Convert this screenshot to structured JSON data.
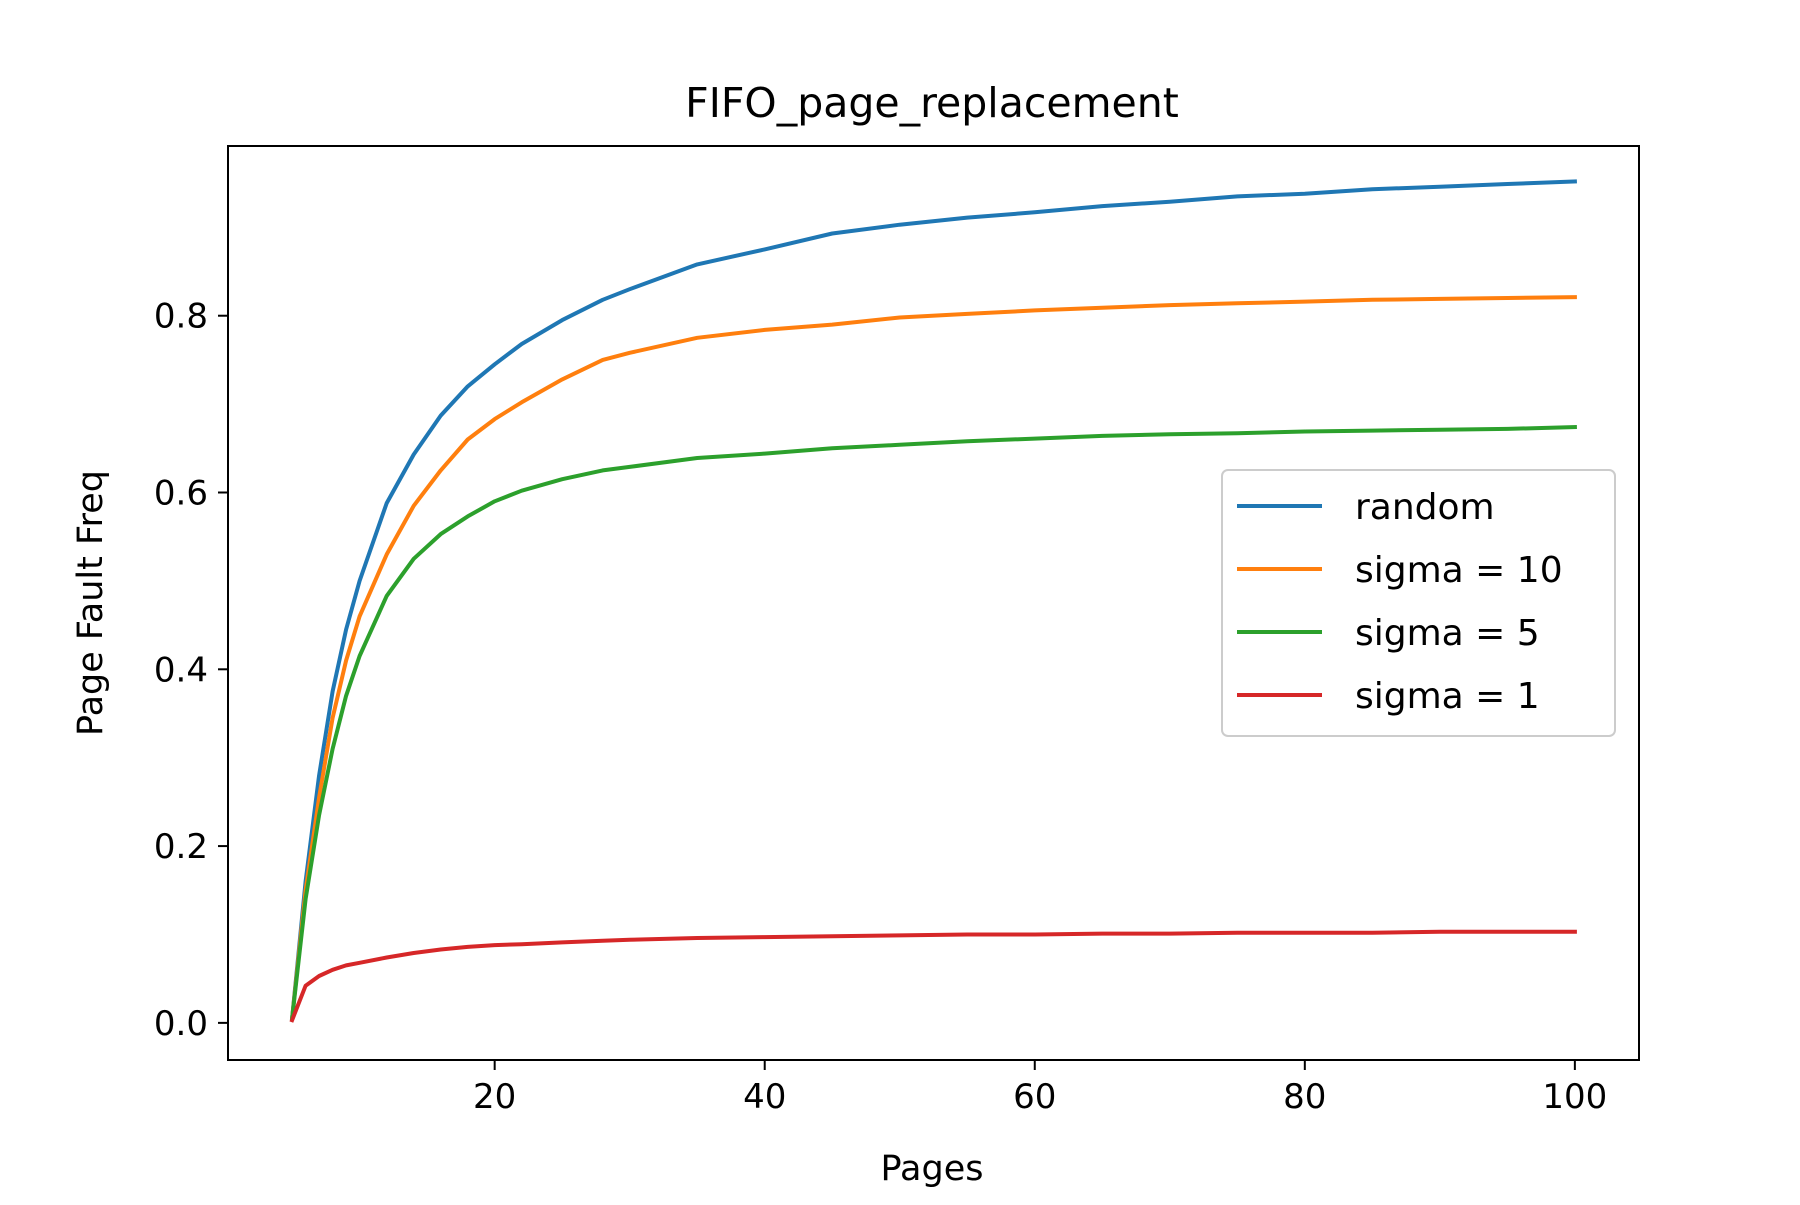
{
  "chart_data": {
    "type": "line",
    "title": "FIFO_page_replacement",
    "xlabel": "Pages",
    "ylabel": "Page Fault Freq",
    "xlim": [
      0.25,
      104.75
    ],
    "ylim": [
      -0.042,
      0.992
    ],
    "x_ticks": [
      {
        "value": 20,
        "label": "20"
      },
      {
        "value": 40,
        "label": "40"
      },
      {
        "value": 60,
        "label": "60"
      },
      {
        "value": 80,
        "label": "80"
      },
      {
        "value": 100,
        "label": "100"
      }
    ],
    "y_ticks": [
      {
        "value": 0.0,
        "label": "0.0"
      },
      {
        "value": 0.2,
        "label": "0.2"
      },
      {
        "value": 0.4,
        "label": "0.4"
      },
      {
        "value": 0.6,
        "label": "0.6"
      },
      {
        "value": 0.8,
        "label": "0.8"
      }
    ],
    "grid": false,
    "legend_position": "center-right",
    "series": [
      {
        "name": "random",
        "color": "#1f77b4",
        "points": [
          [
            5,
            0.005
          ],
          [
            6,
            0.16
          ],
          [
            7,
            0.28
          ],
          [
            8,
            0.375
          ],
          [
            9,
            0.445
          ],
          [
            10,
            0.5
          ],
          [
            12,
            0.588
          ],
          [
            14,
            0.643
          ],
          [
            16,
            0.687
          ],
          [
            18,
            0.72
          ],
          [
            20,
            0.745
          ],
          [
            22,
            0.768
          ],
          [
            25,
            0.795
          ],
          [
            28,
            0.818
          ],
          [
            30,
            0.83
          ],
          [
            35,
            0.858
          ],
          [
            40,
            0.875
          ],
          [
            45,
            0.893
          ],
          [
            50,
            0.903
          ],
          [
            55,
            0.911
          ],
          [
            60,
            0.917
          ],
          [
            65,
            0.924
          ],
          [
            70,
            0.929
          ],
          [
            75,
            0.935
          ],
          [
            80,
            0.938
          ],
          [
            85,
            0.943
          ],
          [
            90,
            0.946
          ],
          [
            95,
            0.949
          ],
          [
            100,
            0.952
          ]
        ]
      },
      {
        "name": "sigma = 10",
        "color": "#ff7f0e",
        "points": [
          [
            5,
            0.005
          ],
          [
            6,
            0.15
          ],
          [
            7,
            0.255
          ],
          [
            8,
            0.345
          ],
          [
            9,
            0.41
          ],
          [
            10,
            0.46
          ],
          [
            12,
            0.53
          ],
          [
            14,
            0.585
          ],
          [
            16,
            0.625
          ],
          [
            18,
            0.66
          ],
          [
            20,
            0.683
          ],
          [
            22,
            0.702
          ],
          [
            25,
            0.728
          ],
          [
            28,
            0.75
          ],
          [
            30,
            0.758
          ],
          [
            35,
            0.775
          ],
          [
            40,
            0.784
          ],
          [
            45,
            0.79
          ],
          [
            50,
            0.798
          ],
          [
            55,
            0.802
          ],
          [
            60,
            0.806
          ],
          [
            65,
            0.809
          ],
          [
            70,
            0.812
          ],
          [
            75,
            0.814
          ],
          [
            80,
            0.816
          ],
          [
            85,
            0.818
          ],
          [
            90,
            0.819
          ],
          [
            95,
            0.82
          ],
          [
            100,
            0.821
          ]
        ]
      },
      {
        "name": "sigma = 5",
        "color": "#2ca02c",
        "points": [
          [
            5,
            0.005
          ],
          [
            6,
            0.14
          ],
          [
            7,
            0.235
          ],
          [
            8,
            0.31
          ],
          [
            9,
            0.37
          ],
          [
            10,
            0.415
          ],
          [
            12,
            0.483
          ],
          [
            14,
            0.525
          ],
          [
            16,
            0.553
          ],
          [
            18,
            0.573
          ],
          [
            20,
            0.59
          ],
          [
            22,
            0.602
          ],
          [
            25,
            0.615
          ],
          [
            28,
            0.625
          ],
          [
            30,
            0.629
          ],
          [
            35,
            0.639
          ],
          [
            40,
            0.644
          ],
          [
            45,
            0.65
          ],
          [
            50,
            0.654
          ],
          [
            55,
            0.658
          ],
          [
            60,
            0.661
          ],
          [
            65,
            0.664
          ],
          [
            70,
            0.666
          ],
          [
            75,
            0.667
          ],
          [
            80,
            0.669
          ],
          [
            85,
            0.67
          ],
          [
            90,
            0.671
          ],
          [
            95,
            0.672
          ],
          [
            100,
            0.674
          ]
        ]
      },
      {
        "name": "sigma = 1",
        "color": "#d62728",
        "points": [
          [
            5,
            0.003
          ],
          [
            6,
            0.042
          ],
          [
            7,
            0.053
          ],
          [
            8,
            0.06
          ],
          [
            9,
            0.065
          ],
          [
            10,
            0.068
          ],
          [
            12,
            0.074
          ],
          [
            14,
            0.079
          ],
          [
            16,
            0.083
          ],
          [
            18,
            0.086
          ],
          [
            20,
            0.088
          ],
          [
            22,
            0.089
          ],
          [
            25,
            0.091
          ],
          [
            28,
            0.093
          ],
          [
            30,
            0.094
          ],
          [
            35,
            0.096
          ],
          [
            40,
            0.097
          ],
          [
            45,
            0.098
          ],
          [
            50,
            0.099
          ],
          [
            55,
            0.1
          ],
          [
            60,
            0.1
          ],
          [
            65,
            0.101
          ],
          [
            70,
            0.101
          ],
          [
            75,
            0.102
          ],
          [
            80,
            0.102
          ],
          [
            85,
            0.102
          ],
          [
            90,
            0.103
          ],
          [
            95,
            0.103
          ],
          [
            100,
            0.103
          ]
        ]
      }
    ]
  }
}
